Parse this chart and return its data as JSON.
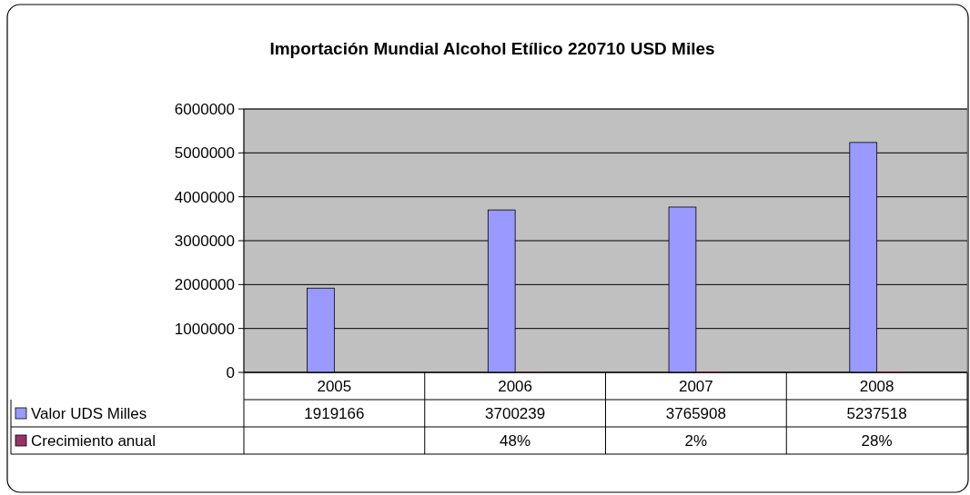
{
  "chart_data": {
    "type": "bar",
    "title": "Importación Mundial Alcohol Etílico 220710 USD Miles",
    "categories": [
      "2005",
      "2006",
      "2007",
      "2008"
    ],
    "series": [
      {
        "name": "Valor UDS Milles",
        "color": "#9999ff",
        "values": [
          1919166,
          3700239,
          3765908,
          5237518
        ]
      },
      {
        "name": "Crecimiento anual",
        "color": "#993366",
        "values": [
          null,
          0.48,
          0.02,
          0.28
        ],
        "value_labels": [
          null,
          "48%",
          "2%",
          "28%"
        ]
      }
    ],
    "data_labels": true,
    "ylim": [
      0,
      6000000
    ],
    "yticks": [
      0,
      1000000,
      2000000,
      3000000,
      4000000,
      5000000,
      6000000
    ],
    "grid": "y",
    "legend": "bottom"
  }
}
